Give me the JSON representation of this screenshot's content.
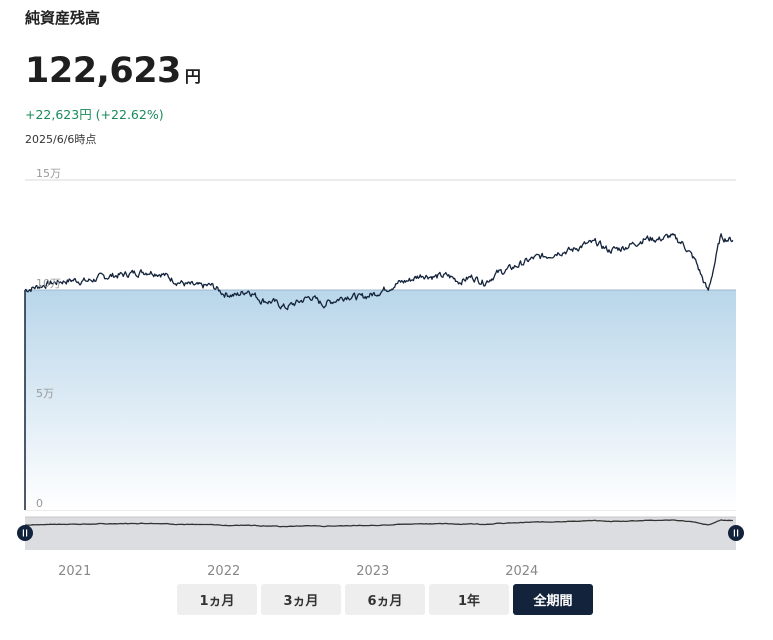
{
  "header": {
    "title": "純資産残高",
    "net_value": "122,623",
    "unit": "円",
    "change": "+22,623円 (+22.62%)",
    "as_of": "2025/6/6時点"
  },
  "range_buttons": [
    {
      "label": "1ヵ月",
      "active": false
    },
    {
      "label": "3ヵ月",
      "active": false
    },
    {
      "label": "6ヵ月",
      "active": false
    },
    {
      "label": "1年",
      "active": false
    },
    {
      "label": "全期間",
      "active": true
    }
  ],
  "colors": {
    "line": "#13233b",
    "fill_top": "#b9d6ea",
    "fill_bottom": "#ffffff",
    "navigator_bg": "#dcdde0",
    "button_active": "#13233b",
    "positive": "#1a8a5a"
  },
  "chart_data": {
    "type": "area",
    "ylim": [
      0,
      150000
    ],
    "y_ticks": [
      {
        "value": 0,
        "label": "0"
      },
      {
        "value": 50000,
        "label": "5万"
      },
      {
        "value": 100000,
        "label": "10万"
      },
      {
        "value": 150000,
        "label": "15万"
      }
    ],
    "baseline": 100000,
    "x_labels": [
      "2021",
      "2022",
      "2023",
      "2024"
    ],
    "x_range": [
      "2020-09",
      "2025-06"
    ],
    "grid": true,
    "series": [
      {
        "x": [
          "2020-09",
          "2020-10",
          "2020-11",
          "2020-12",
          "2021-01",
          "2021-02",
          "2021-03",
          "2021-04",
          "2021-05",
          "2021-06",
          "2021-07",
          "2021-08",
          "2021-09",
          "2021-10",
          "2021-11",
          "2021-12",
          "2022-01",
          "2022-02",
          "2022-03",
          "2022-04",
          "2022-05",
          "2022-06",
          "2022-07",
          "2022-08",
          "2022-09",
          "2022-10",
          "2022-11",
          "2022-12",
          "2023-01",
          "2023-02",
          "2023-03",
          "2023-04",
          "2023-05",
          "2023-06",
          "2023-07",
          "2023-08",
          "2023-09",
          "2023-10",
          "2023-11",
          "2023-12",
          "2024-01",
          "2024-02",
          "2024-03",
          "2024-04",
          "2024-05",
          "2024-06",
          "2024-07",
          "2024-08",
          "2024-09",
          "2024-10",
          "2024-11",
          "2024-12",
          "2025-01",
          "2025-02",
          "2025-03",
          "2025-04",
          "2025-05",
          "2025-06"
        ],
        "values": [
          100000,
          101500,
          103000,
          104000,
          104500,
          104000,
          105500,
          106500,
          107000,
          108000,
          108500,
          107500,
          104500,
          102500,
          101500,
          102000,
          98500,
          97500,
          100000,
          95500,
          94500,
          92000,
          94500,
          97000,
          93500,
          95500,
          97500,
          96500,
          98000,
          100500,
          103000,
          104500,
          107000,
          106000,
          106500,
          104000,
          106000,
          103500,
          107500,
          109500,
          112000,
          114500,
          115500,
          117500,
          118000,
          120500,
          121500,
          118000,
          119000,
          121000,
          123500,
          123000,
          124500,
          121000,
          113000,
          99000,
          124000,
          122623
        ]
      }
    ]
  }
}
